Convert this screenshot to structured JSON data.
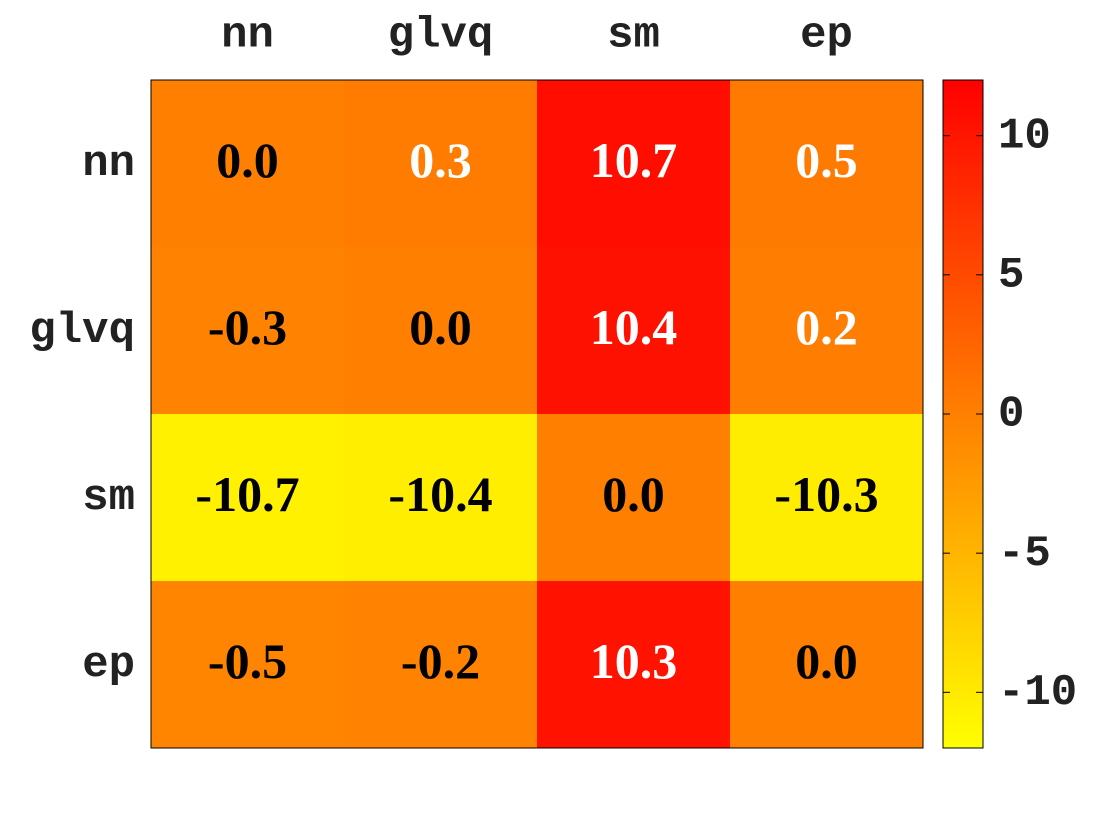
{
  "chart_data": {
    "type": "heatmap",
    "x_categories": [
      "nn",
      "glvq",
      "sm",
      "ep"
    ],
    "y_categories": [
      "nn",
      "glvq",
      "sm",
      "ep"
    ],
    "values": [
      [
        0.0,
        0.3,
        10.7,
        0.5
      ],
      [
        -0.3,
        0.0,
        10.4,
        0.2
      ],
      [
        -10.7,
        -10.4,
        0.0,
        -10.3
      ],
      [
        -0.5,
        -0.2,
        10.3,
        0.0
      ]
    ],
    "value_labels": [
      [
        "0.0",
        "0.3",
        "10.7",
        "0.5"
      ],
      [
        "-0.3",
        "0.0",
        "10.4",
        "0.2"
      ],
      [
        "-10.7",
        "-10.4",
        "0.0",
        "-10.3"
      ],
      [
        "-0.5",
        "-0.2",
        "10.3",
        "0.0"
      ]
    ],
    "label_colors": [
      [
        "#000000",
        "#ffffff",
        "#ffffff",
        "#ffffff"
      ],
      [
        "#000000",
        "#000000",
        "#ffffff",
        "#ffffff"
      ],
      [
        "#000000",
        "#000000",
        "#000000",
        "#000000"
      ],
      [
        "#000000",
        "#000000",
        "#ffffff",
        "#000000"
      ]
    ],
    "colormap": [
      "#ffff00",
      "#ff0000"
    ],
    "clim": [
      -12,
      12
    ],
    "cticks": [
      -10,
      -5,
      0,
      5,
      10
    ]
  }
}
